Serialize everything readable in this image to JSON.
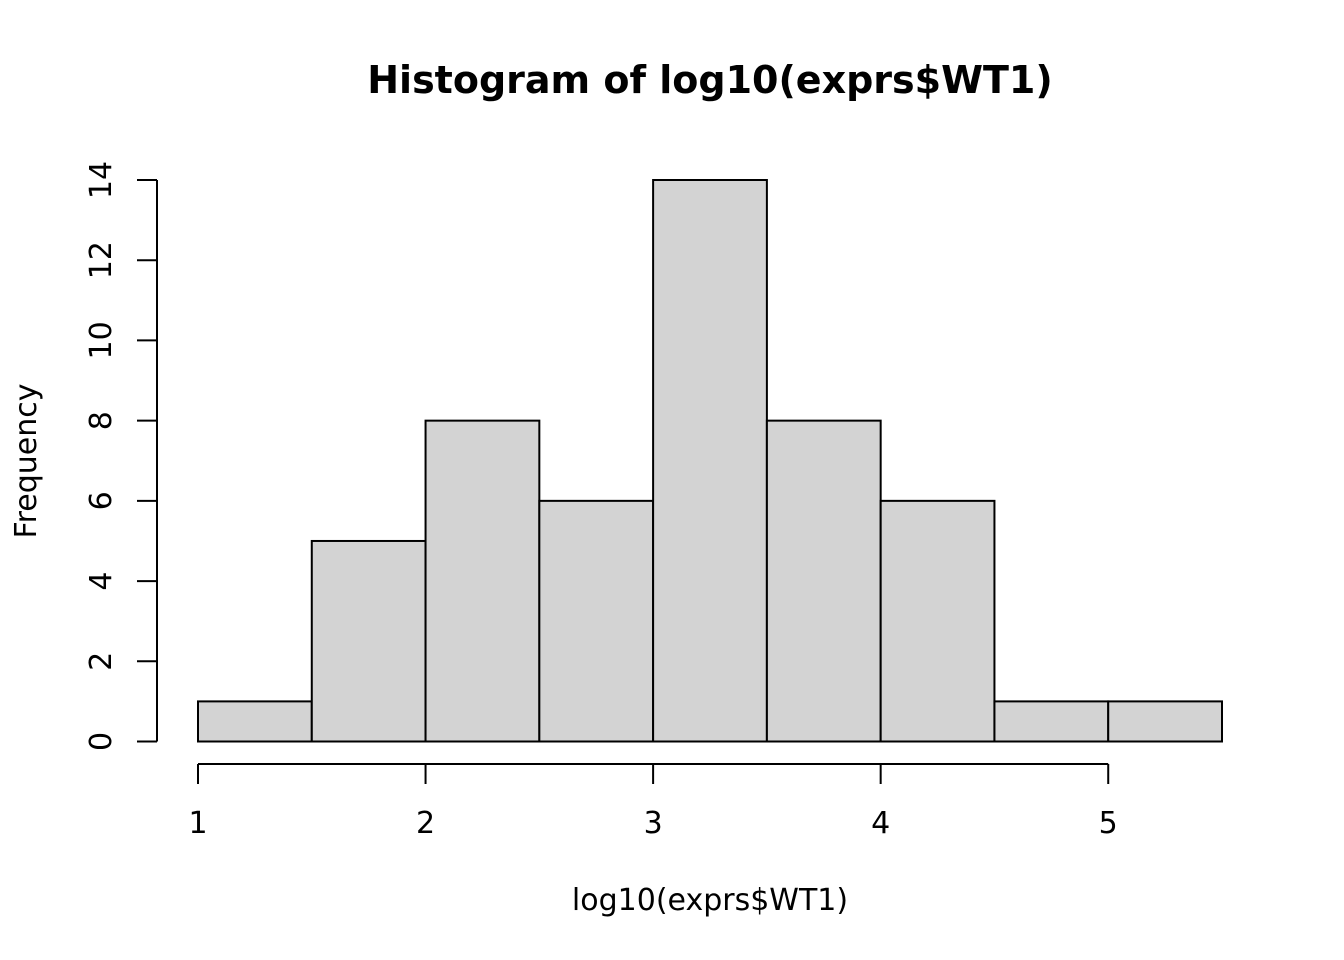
{
  "chart_data": {
    "type": "bar",
    "title": "Histogram of log10(exprs$WT1)",
    "xlabel": "log10(exprs$WT1)",
    "ylabel": "Frequency",
    "bins": [
      {
        "x0": 1.0,
        "x1": 1.5,
        "count": 1
      },
      {
        "x0": 1.5,
        "x1": 2.0,
        "count": 5
      },
      {
        "x0": 2.0,
        "x1": 2.5,
        "count": 8
      },
      {
        "x0": 2.5,
        "x1": 3.0,
        "count": 6
      },
      {
        "x0": 3.0,
        "x1": 3.5,
        "count": 14
      },
      {
        "x0": 3.5,
        "x1": 4.0,
        "count": 8
      },
      {
        "x0": 4.0,
        "x1": 4.5,
        "count": 6
      },
      {
        "x0": 4.5,
        "x1": 5.0,
        "count": 1
      },
      {
        "x0": 5.0,
        "x1": 5.5,
        "count": 1
      }
    ],
    "xticks": [
      "1",
      "2",
      "3",
      "4",
      "5"
    ],
    "yticks": [
      "0",
      "2",
      "4",
      "6",
      "8",
      "10",
      "12",
      "14"
    ],
    "xlim": [
      1.0,
      5.5
    ],
    "ylim": [
      0,
      14
    ],
    "grid": false,
    "bar_fill": "#d3d3d3",
    "bar_stroke": "#000000"
  }
}
